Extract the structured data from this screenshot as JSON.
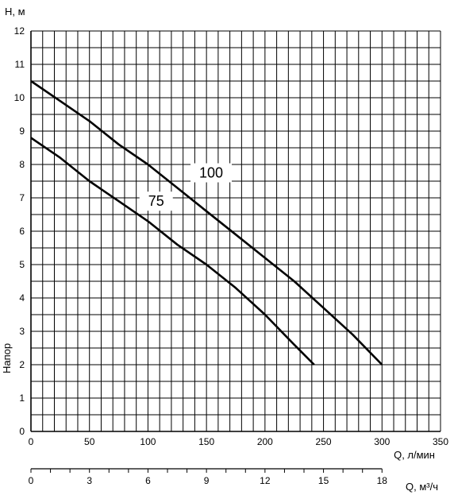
{
  "chart_data": {
    "type": "line",
    "ylabel_top": "H, м",
    "ylabel_side": "Напор",
    "xlabel": "Q, л/мин",
    "xlabel2": "Q, м³/ч",
    "xlim": [
      0,
      350
    ],
    "ylim": [
      0,
      12
    ],
    "x_ticks": [
      "0",
      "50",
      "100",
      "150",
      "200",
      "250",
      "300",
      "350"
    ],
    "y_ticks": [
      "0",
      "1",
      "2",
      "3",
      "4",
      "5",
      "6",
      "7",
      "8",
      "9",
      "10",
      "11",
      "12"
    ],
    "x2_ticks": [
      "0",
      "3",
      "6",
      "9",
      "12",
      "15",
      "18"
    ],
    "grid": true,
    "series": [
      {
        "name": "100",
        "x": [
          0,
          25,
          50,
          75,
          100,
          125,
          150,
          175,
          200,
          225,
          250,
          275,
          300
        ],
        "y": [
          10.5,
          9.9,
          9.3,
          8.6,
          8.0,
          7.3,
          6.6,
          5.9,
          5.2,
          4.5,
          3.7,
          2.9,
          2.0
        ]
      },
      {
        "name": "75",
        "x": [
          0,
          25,
          50,
          75,
          100,
          125,
          150,
          175,
          200,
          225,
          242
        ],
        "y": [
          8.8,
          8.2,
          7.5,
          6.9,
          6.3,
          5.6,
          5.0,
          4.3,
          3.5,
          2.6,
          2.0
        ]
      }
    ]
  }
}
